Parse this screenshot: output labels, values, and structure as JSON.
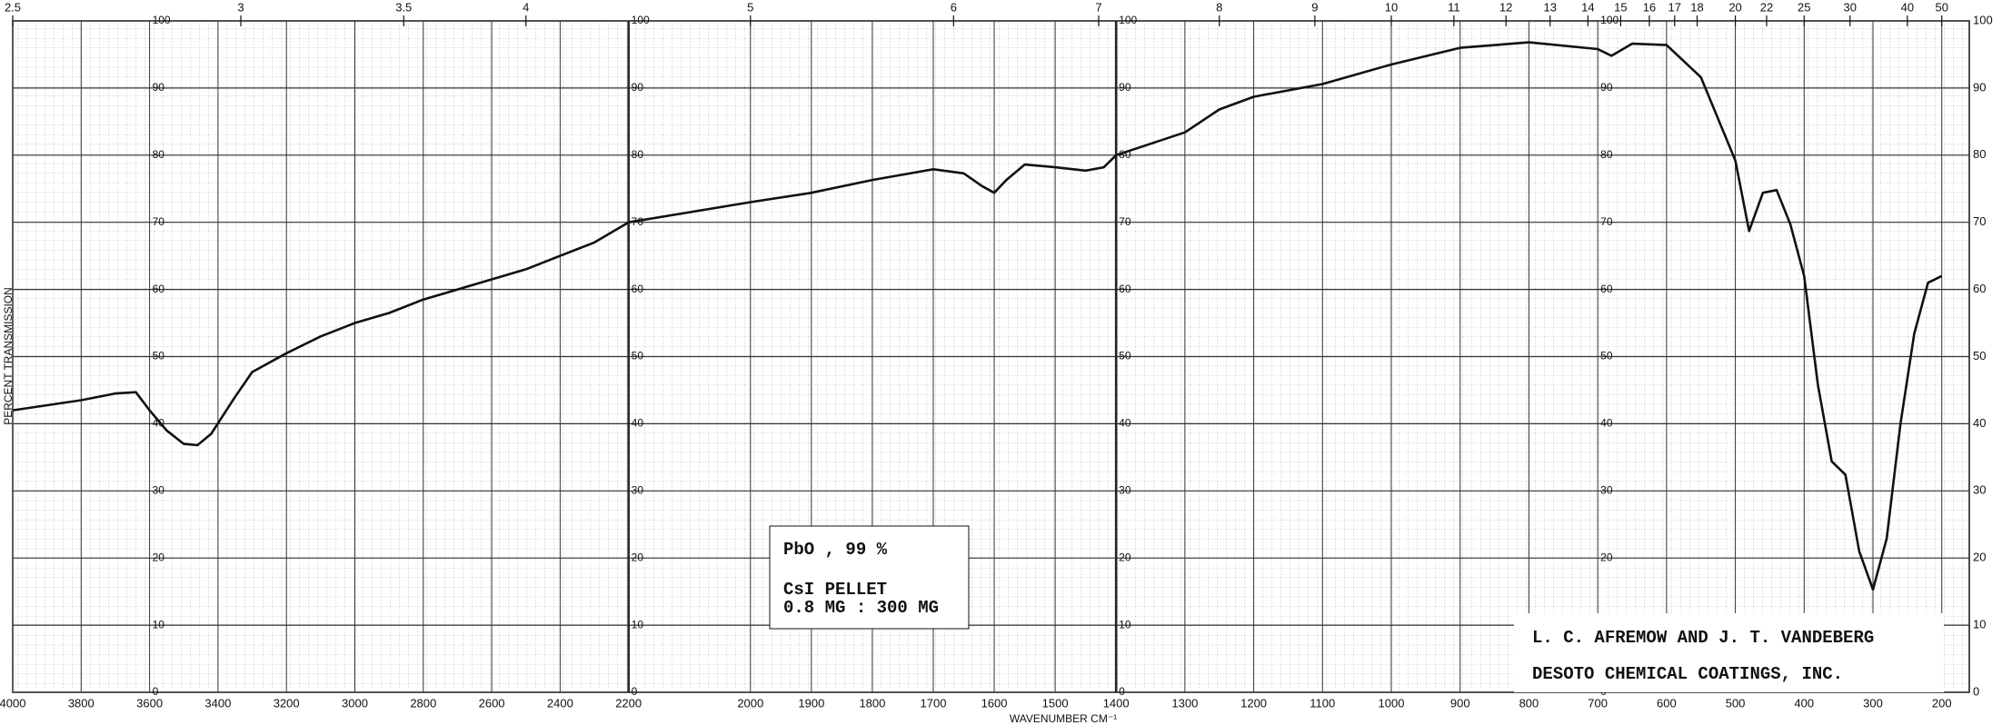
{
  "chart_data": {
    "type": "line",
    "y_label": "PERCENT TRANSMISSION",
    "x_label": "WAVENUMBER CM⁻¹",
    "x": [
      4000,
      3800,
      3700,
      3640,
      3600,
      3550,
      3500,
      3460,
      3420,
      3350,
      3300,
      3200,
      3100,
      3000,
      2900,
      2800,
      2600,
      2500,
      2400,
      2300,
      2200,
      2100,
      2000,
      1900,
      1800,
      1700,
      1650,
      1620,
      1600,
      1580,
      1550,
      1500,
      1450,
      1420,
      1400,
      1300,
      1250,
      1200,
      1100,
      1000,
      900,
      800,
      700,
      680,
      650,
      600,
      550,
      500,
      480,
      460,
      440,
      420,
      400,
      380,
      360,
      340,
      320,
      300,
      280,
      260,
      240,
      220,
      200
    ],
    "values": [
      42,
      43.5,
      44.5,
      44.7,
      42,
      39,
      37,
      36.8,
      38.5,
      44,
      47.7,
      50.5,
      53,
      55,
      56.5,
      58.5,
      61.5,
      63,
      65,
      67,
      70,
      71.5,
      73,
      74.4,
      76.3,
      77.9,
      77.3,
      75.4,
      74.4,
      76.3,
      78.6,
      78.2,
      77.7,
      78.2,
      80,
      83.4,
      86.8,
      88.7,
      90.6,
      93.5,
      96,
      96.8,
      95.8,
      94.8,
      96.6,
      96.4,
      91.6,
      79.2,
      68.7,
      74.4,
      74.8,
      69.7,
      62,
      45.8,
      34.4,
      32.4,
      21,
      15.3,
      22.9,
      40,
      53.4,
      61,
      62
    ],
    "color": "#111111",
    "xlim": [
      4000,
      160
    ],
    "scale_changes": [
      2200,
      1400
    ],
    "xticks": [
      4000,
      3800,
      3600,
      3400,
      3200,
      3000,
      2800,
      2600,
      2400,
      2200,
      2000,
      1900,
      1800,
      1700,
      1600,
      1500,
      1400,
      1300,
      1200,
      1100,
      1000,
      900,
      800,
      700,
      600,
      500,
      400,
      300,
      200
    ],
    "x2ticks": [
      2.5,
      3,
      3.5,
      4,
      5,
      6,
      7,
      8,
      9,
      10,
      11,
      12,
      13,
      14,
      15,
      16,
      17,
      18,
      20,
      22,
      25,
      30,
      40,
      50
    ],
    "ylim": [
      0,
      100
    ],
    "yticks": [
      0,
      10,
      20,
      30,
      40,
      50,
      60,
      70,
      80,
      90,
      100
    ],
    "grid": true,
    "annotations": {
      "sample": "PbO , 99 %",
      "method": "CsI PELLET",
      "ratio": "0.8 MG : 300 MG",
      "authors": "L. C. AFREMOW AND J. T. VANDEBERG",
      "company": "DESOTO CHEMICAL COATINGS, INC."
    }
  }
}
